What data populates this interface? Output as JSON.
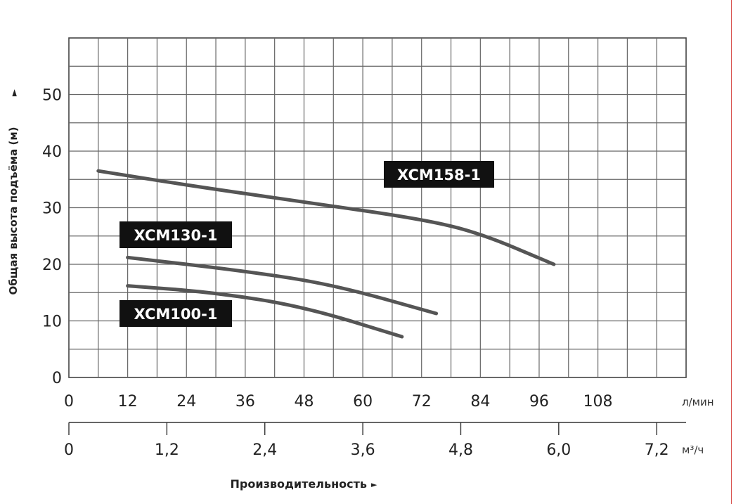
{
  "chart_data": {
    "type": "line",
    "ylabel": "Общая высота подъёма (м)",
    "xlabel": "Производительность",
    "x_unit": "л/мин",
    "x2_unit": "м³/ч",
    "xlim": [
      0,
      126
    ],
    "ylim": [
      0,
      60
    ],
    "x_ticks": [
      0,
      12,
      24,
      36,
      48,
      60,
      72,
      84,
      96,
      108
    ],
    "x_tick_labels": [
      "0",
      "12",
      "24",
      "36",
      "48",
      "60",
      "72",
      "84",
      "96",
      "108"
    ],
    "x2_ticks": [
      0,
      1.2,
      2.4,
      3.6,
      4.8,
      6.0,
      7.2
    ],
    "x2_tick_labels": [
      "0",
      "1,2",
      "2,4",
      "3,6",
      "4,8",
      "6,0",
      "7,2"
    ],
    "y_ticks": [
      0,
      10,
      20,
      30,
      40,
      50
    ],
    "y_tick_labels": [
      "0",
      "10",
      "20",
      "30",
      "40",
      "50"
    ],
    "grid": true,
    "series": [
      {
        "name": "XCM158-1",
        "color": "#555555",
        "x": [
          6,
          24,
          48,
          72,
          84,
          99
        ],
        "y": [
          36.5,
          34,
          31,
          28,
          25.5,
          20
        ]
      },
      {
        "name": "XCM130-1",
        "color": "#555555",
        "x": [
          12,
          36,
          54,
          75
        ],
        "y": [
          21.2,
          18.8,
          16.4,
          11.3
        ]
      },
      {
        "name": "XCM100-1",
        "color": "#555555",
        "x": [
          12,
          30,
          48,
          68
        ],
        "y": [
          16.2,
          15,
          12.5,
          7.2
        ]
      }
    ]
  }
}
